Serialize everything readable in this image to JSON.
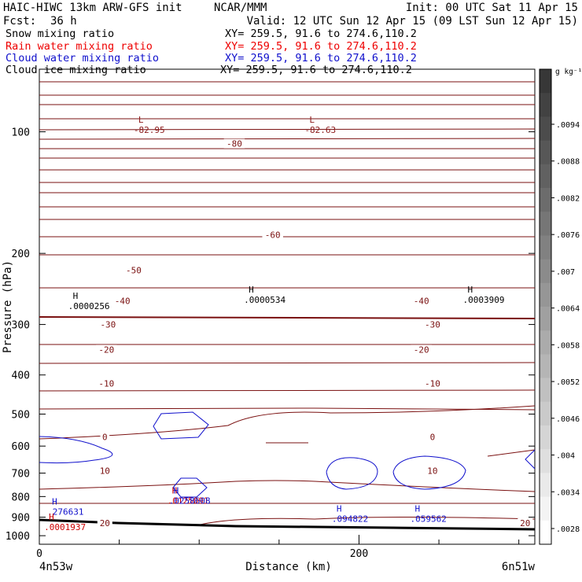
{
  "header": {
    "model": "HAIC-HIWC 13km ARW-GFS init",
    "org": "NCAR/MMM",
    "init": "Init: 00 UTC Sat 11 Apr 15",
    "fcst_label": "Fcst:",
    "fcst_value": "36 h",
    "valid": "Valid: 12 UTC Sun 12 Apr 15 (09 LST Sun 12 Apr 15)"
  },
  "fields": [
    {
      "name": "Snow mixing ratio",
      "xy": "XY= 259.5, 91.6 to 274.6,110.2",
      "color": "#000000"
    },
    {
      "name": "Rain water mixing ratio",
      "xy": "XY= 259.5, 91.6 to 274.6,110.2",
      "color": "#ee0000"
    },
    {
      "name": "Cloud water mixing ratio",
      "xy": "XY= 259.5, 91.6 to 274.6,110.2",
      "color": "#1010cc"
    },
    {
      "name": "Cloud ice mixing ratio",
      "xy": "XY= 259.5, 91.6 to 274.6,110.2",
      "color": "#000000"
    }
  ],
  "chart_data": {
    "type": "contour-cross-section",
    "ylabel": "Pressure (hPa)",
    "xlabel": "Distance (km)",
    "y_scale": "log",
    "ylim": [
      1050,
      70
    ],
    "xlim": [
      0,
      310
    ],
    "y_ticks": [
      100,
      200,
      300,
      400,
      500,
      600,
      700,
      800,
      900,
      1000
    ],
    "x_ticks": [
      0,
      200
    ],
    "x_minor_ticks": [
      50,
      100,
      150,
      250,
      300
    ],
    "left_endpoint": "4n53w",
    "right_endpoint": "6n51w",
    "temperature_labels": [
      {
        "value": "-80",
        "x": 122,
        "p": 107
      },
      {
        "value": "-60",
        "x": 146,
        "p": 180
      },
      {
        "value": "-50",
        "x": 59,
        "p": 220
      },
      {
        "value": "-40",
        "x": 52,
        "p": 262
      },
      {
        "value": "-40",
        "x": 239,
        "p": 262
      },
      {
        "value": "-30",
        "x": 43,
        "p": 300
      },
      {
        "value": "-30",
        "x": 246,
        "p": 300
      },
      {
        "value": "-20",
        "x": 42,
        "p": 346
      },
      {
        "value": "-20",
        "x": 239,
        "p": 346
      },
      {
        "value": "-10",
        "x": 42,
        "p": 420
      },
      {
        "value": "-10",
        "x": 246,
        "p": 420
      },
      {
        "value": "0",
        "x": 41,
        "p": 570
      },
      {
        "value": "0",
        "x": 246,
        "p": 570
      },
      {
        "value": "10",
        "x": 41,
        "p": 690
      },
      {
        "value": "10",
        "x": 246,
        "p": 690
      },
      {
        "value": "20",
        "x": 41,
        "p": 930
      },
      {
        "value": "20",
        "x": 304,
        "p": 930
      }
    ],
    "extrema": [
      {
        "type": "L",
        "value": "-82.95",
        "x": 59,
        "p": 97,
        "color": "#8b1a1a"
      },
      {
        "type": "L",
        "value": "-82.63",
        "x": 166,
        "p": 97,
        "color": "#8b1a1a"
      },
      {
        "type": "H",
        "value": ".0000256",
        "x": 18,
        "p": 265,
        "color": "#000000"
      },
      {
        "type": "H",
        "value": ".0000534",
        "x": 128,
        "p": 256,
        "color": "#000000"
      },
      {
        "type": "H",
        "value": ".0003909",
        "x": 265,
        "p": 256,
        "color": "#000000"
      },
      {
        "type": "H",
        "value": ".0125091",
        "x": 80,
        "p": 805,
        "color": "#cc0000"
      },
      {
        "type": "H",
        "value": ".0258608",
        "x": 81,
        "p": 805,
        "color": "#1010cc"
      },
      {
        "type": "H",
        "value": ".276631",
        "x": 5,
        "p": 856,
        "color": "#1010cc"
      },
      {
        "type": "H",
        "value": ".094822",
        "x": 183,
        "p": 892,
        "color": "#1010cc"
      },
      {
        "type": "H",
        "value": ".059562",
        "x": 232,
        "p": 892,
        "color": "#1010cc"
      },
      {
        "type": "H",
        "value": ".0001937",
        "x": 3,
        "p": 935,
        "color": "#cc0000"
      }
    ],
    "colorbar": {
      "unit": "g kg⁻¹",
      "ticks": [
        ".0094",
        ".0088",
        ".0082",
        ".0076",
        ".007",
        ".0064",
        ".0058",
        ".0052",
        ".0046",
        ".004",
        ".0034",
        ".0028"
      ]
    },
    "colors": {
      "temperature": "#7a1010",
      "cloud_water": "#1010cc",
      "surface": "#000000"
    }
  }
}
